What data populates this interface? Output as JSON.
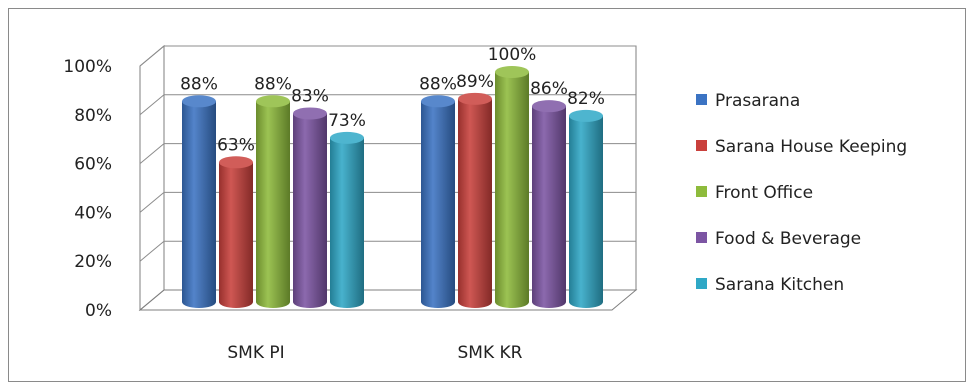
{
  "chart_data": {
    "type": "bar",
    "categories": [
      "SMK PI",
      "SMK KR"
    ],
    "series": [
      {
        "name": "Prasarana",
        "values": [
          88,
          88
        ],
        "color": "#3B73C3"
      },
      {
        "name": "Sarana House Keeping",
        "values": [
          63,
          89
        ],
        "color": "#C9403C"
      },
      {
        "name": "Front Office",
        "values": [
          88,
          100
        ],
        "color": "#8EBB3C"
      },
      {
        "name": "Food & Beverage",
        "values": [
          83,
          86
        ],
        "color": "#7C55A3"
      },
      {
        "name": "Sarana Kitchen",
        "values": [
          73,
          82
        ],
        "color": "#2FA8C6"
      }
    ],
    "data_labels": [
      [
        "88%",
        "63%",
        "88%",
        "83%",
        "73%"
      ],
      [
        "88%",
        "89%",
        "100%",
        "86%",
        "82%"
      ]
    ],
    "yticks": [
      "0%",
      "20%",
      "40%",
      "60%",
      "80%",
      "100%"
    ],
    "ylim": [
      0,
      100
    ],
    "grid": true,
    "legend_position": "right",
    "style": "3d-cylinder"
  }
}
